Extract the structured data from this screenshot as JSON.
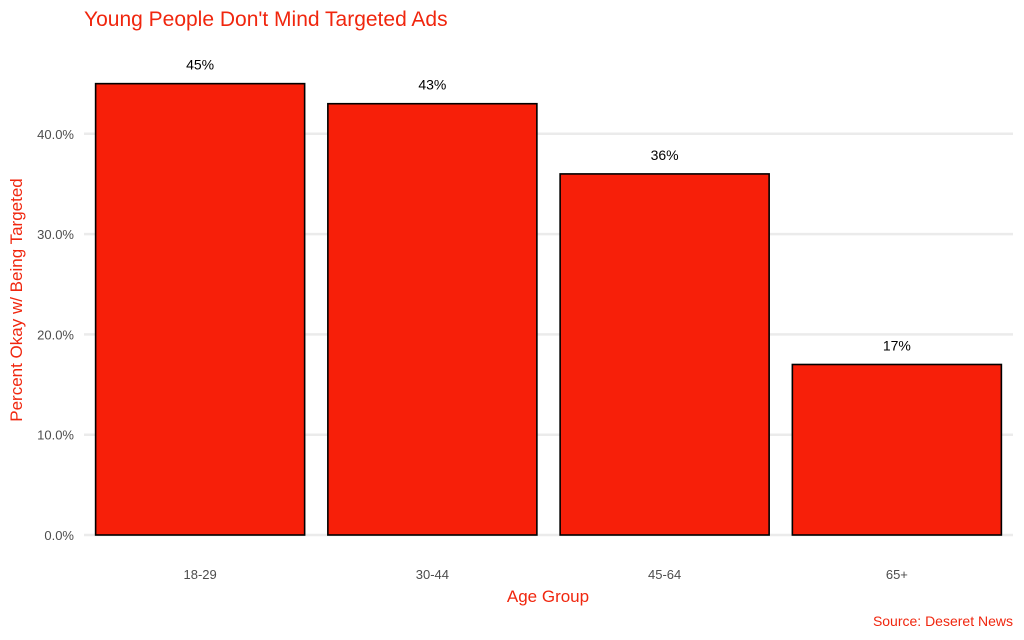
{
  "chart_data": {
    "type": "bar",
    "title": "Young People Don't Mind Targeted Ads",
    "xlabel": "Age Group",
    "ylabel": "Percent Okay w/ Being Targeted",
    "source": "Source: Deseret News",
    "categories": [
      "18-29",
      "30-44",
      "45-64",
      "65+"
    ],
    "values": [
      45,
      43,
      36,
      17
    ],
    "data_labels": [
      "45%",
      "43%",
      "36%",
      "17%"
    ],
    "yticks": [
      0,
      10,
      20,
      30,
      40
    ],
    "ytick_labels": [
      "0.0%",
      "10.0%",
      "20.0%",
      "30.0%",
      "40.0%"
    ],
    "ylim": [
      0,
      47
    ],
    "grid": "horizontal",
    "legend": "none",
    "colors": {
      "bar_fill": "#f71f09",
      "bar_stroke": "#000000",
      "title": "#f0260e",
      "axis_title": "#f0260e",
      "source": "#f0260e",
      "grid": "#ebebeb"
    }
  }
}
